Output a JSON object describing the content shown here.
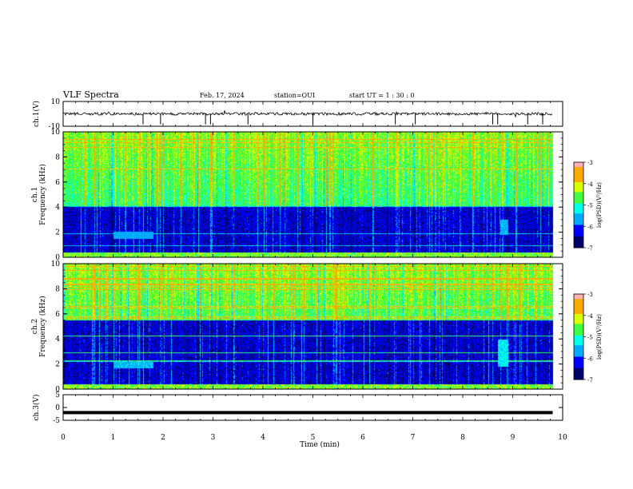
{
  "header": {
    "title": "VLF Spectra",
    "date": "Feb. 17, 2024",
    "station": "station=OUI",
    "start": "start  UT =   1 : 30 : 0"
  },
  "chart_data": [
    {
      "type": "line",
      "panel": "ch1-waveform",
      "ylabel": "ch.1(V)",
      "ylim": [
        -10,
        10
      ],
      "y_ticks": [
        "10",
        "-10"
      ],
      "xlim": [
        0,
        10
      ],
      "baseline": 0,
      "trace_end_min": 9.8,
      "dropouts_min": [
        1.6,
        1.95,
        2.85,
        2.95,
        3.7,
        5.0,
        6.65,
        7.05,
        8.6,
        8.7,
        9.3,
        9.6
      ]
    },
    {
      "type": "heatmap",
      "panel": "ch1-spectrogram",
      "ylabel": "ch.1\nFrequency (kHz)",
      "ylim": [
        0,
        10
      ],
      "y_ticks": [
        "0",
        "2",
        "4",
        "6",
        "8",
        "10"
      ],
      "xlim": [
        0,
        10
      ],
      "colorbar": {
        "label": "log(PSD)(V²/Hz)",
        "range": [
          -7,
          -3
        ],
        "ticks": [
          "-3",
          "-4",
          "-5",
          "-6",
          "-7"
        ]
      }
    },
    {
      "type": "heatmap",
      "panel": "ch2-spectrogram",
      "ylabel": "ch.2\nFrequency (kHz)",
      "ylim": [
        0,
        10
      ],
      "y_ticks": [
        "0",
        "2",
        "4",
        "6",
        "8",
        "10"
      ],
      "xlim": [
        0,
        10
      ],
      "colorbar": {
        "label": "log(PSD)(V²/Hz)",
        "range": [
          -7,
          -3
        ],
        "ticks": [
          "-3",
          "-4",
          "-5",
          "-6",
          "-7"
        ]
      }
    },
    {
      "type": "line",
      "panel": "ch3-waveform",
      "ylabel": "ch.3(V)",
      "ylim": [
        -5,
        5
      ],
      "y_ticks": [
        "5",
        "0",
        "-5"
      ],
      "xlim": [
        0,
        10
      ],
      "level": -2,
      "trace_end_min": 9.8
    }
  ],
  "xaxis": {
    "label": "Time (min)",
    "ticks": [
      "0",
      "1",
      "2",
      "3",
      "4",
      "5",
      "6",
      "7",
      "8",
      "9",
      "10"
    ]
  },
  "colors": {
    "colormap": [
      "#00006e",
      "#0000ff",
      "#00aaff",
      "#00ffee",
      "#40ff40",
      "#d8ff00",
      "#ffaa00",
      "#ff0000",
      "#ffffff"
    ],
    "background": "#ffffff",
    "axes": "#000000"
  }
}
